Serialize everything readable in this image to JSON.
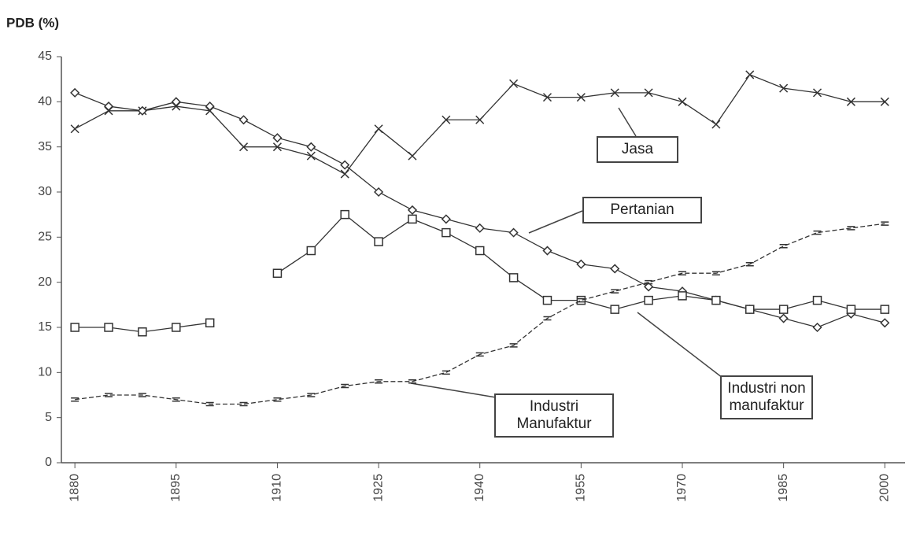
{
  "chart_data": {
    "type": "line",
    "y_label": "PDB (%)",
    "x": [
      1880,
      1885,
      1890,
      1895,
      1900,
      1905,
      1910,
      1915,
      1920,
      1925,
      1930,
      1935,
      1940,
      1945,
      1950,
      1955,
      1960,
      1965,
      1970,
      1975,
      1980,
      1985,
      1990,
      1995,
      2000
    ],
    "xlim": [
      1878,
      2003
    ],
    "xticks": [
      1880,
      1895,
      1910,
      1925,
      1940,
      1955,
      1970,
      1985,
      2000
    ],
    "ylim": [
      0,
      45
    ],
    "yticks": [
      0,
      5,
      10,
      15,
      20,
      25,
      30,
      35,
      40,
      45
    ],
    "series": [
      {
        "name": "Jasa",
        "color": "#333333",
        "marker": "x",
        "values": [
          37,
          39,
          39,
          39.5,
          39,
          35,
          35,
          34,
          32,
          37,
          34,
          38,
          38,
          42,
          40.5,
          40.5,
          41,
          41,
          40,
          37.5,
          43,
          41.5,
          41,
          40,
          40
        ]
      },
      {
        "name": "Pertanian",
        "color": "#333333",
        "marker": "diamond",
        "values": [
          41,
          39.5,
          39,
          40,
          39.5,
          38,
          36,
          35,
          33,
          30,
          28,
          27,
          26,
          25.5,
          23.5,
          22,
          21.5,
          19.5,
          19,
          18,
          17,
          16,
          15,
          16.5,
          15.5
        ]
      },
      {
        "name": "Industri non manufaktur",
        "color": "#333333",
        "marker": "square",
        "values": [
          15,
          15,
          14.5,
          15,
          15.5,
          null,
          21,
          23.5,
          27.5,
          24.5,
          27,
          25.5,
          23.5,
          20.5,
          18,
          18,
          17,
          18,
          18.5,
          18,
          17,
          17,
          18,
          17,
          17
        ]
      },
      {
        "name": "Industri Manufaktur",
        "color": "#333333",
        "marker": "dash",
        "values": [
          7,
          7.5,
          7.5,
          7,
          6.5,
          6.5,
          7,
          7.5,
          8.5,
          9,
          9,
          10,
          12,
          13,
          16,
          18,
          19,
          20,
          21,
          21,
          22,
          24,
          25.5,
          26,
          26.5
        ]
      }
    ]
  }
}
